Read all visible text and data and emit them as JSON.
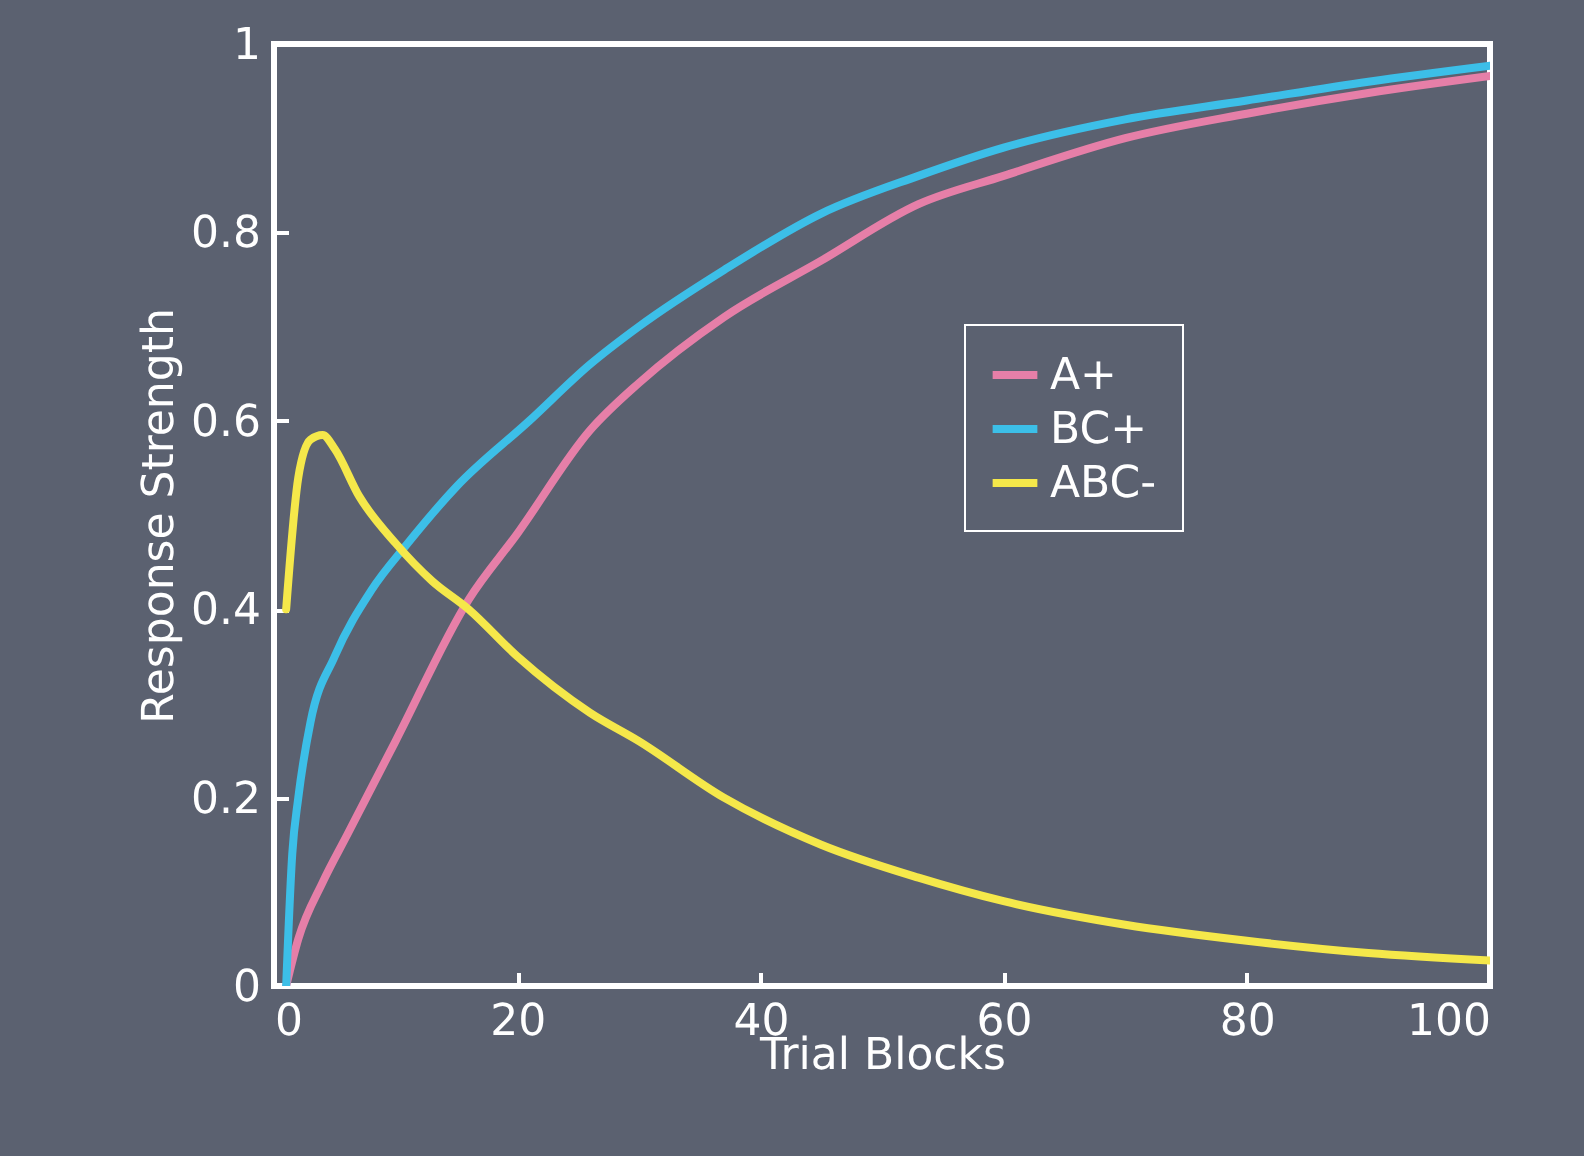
{
  "chart_data": {
    "type": "line",
    "xlabel": "Trial Blocks",
    "ylabel": "Response Strength",
    "xlim": [
      0,
      100
    ],
    "ylim": [
      0,
      1
    ],
    "xticks": [
      0,
      20,
      40,
      60,
      80,
      100
    ],
    "yticks": [
      0,
      0.2,
      0.4,
      0.6,
      0.8,
      1
    ],
    "legend": "right",
    "series": [
      {
        "name": "A+",
        "color": "#e67fa8",
        "x": [
          1,
          2,
          4,
          6,
          10,
          16,
          20,
          26,
          30,
          37,
          45,
          53,
          60,
          70,
          80,
          90,
          100
        ],
        "values": [
          0,
          0.05,
          0.11,
          0.16,
          0.26,
          0.41,
          0.48,
          0.59,
          0.64,
          0.71,
          0.77,
          0.83,
          0.86,
          0.9,
          0.926,
          0.948,
          0.966
        ]
      },
      {
        "name": "BC+",
        "color": "#3cbfe8",
        "x": [
          1,
          1.5,
          2,
          3,
          5,
          8,
          11,
          15,
          21,
          26,
          30,
          37,
          45,
          53,
          60,
          70,
          80,
          90,
          100
        ],
        "values": [
          0,
          0.14,
          0.2,
          0.28,
          0.35,
          0.42,
          0.47,
          0.53,
          0.6,
          0.66,
          0.7,
          0.76,
          0.82,
          0.86,
          0.89,
          0.92,
          0.94,
          0.96,
          0.977
        ]
      },
      {
        "name": "ABC-",
        "color": "#f5e84a",
        "x": [
          1,
          2,
          3,
          4,
          5,
          7,
          10,
          13,
          16,
          20,
          26,
          30,
          37,
          45,
          53,
          60,
          70,
          80,
          90,
          100
        ],
        "values": [
          0.4,
          0.54,
          0.58,
          0.585,
          0.57,
          0.52,
          0.47,
          0.43,
          0.4,
          0.35,
          0.29,
          0.26,
          0.2,
          0.15,
          0.115,
          0.09,
          0.065,
          0.048,
          0.035,
          0.027
        ]
      }
    ]
  }
}
